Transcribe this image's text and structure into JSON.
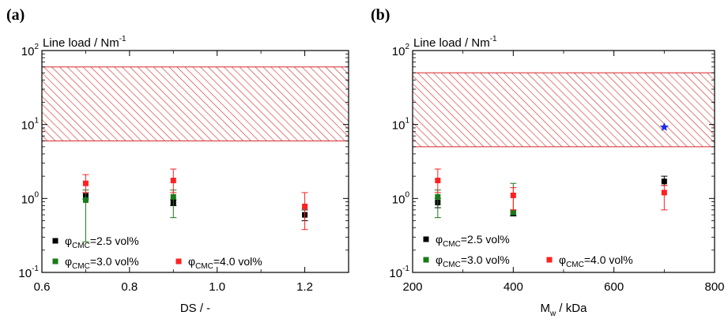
{
  "chart_data": [
    {
      "type": "scatter",
      "panel_label": "(a)",
      "ylabel": {
        "text": "Line load / Nm",
        "superscript": "-1"
      },
      "xlabel": {
        "text": "DS / -"
      },
      "xlim": [
        0.6,
        1.3
      ],
      "ylim": [
        0.1,
        100
      ],
      "yscale": "log",
      "x_ticks": [
        0.6,
        0.8,
        1.0,
        1.2
      ],
      "x_tick_labels": [
        "0.6",
        "0.8",
        "1.0",
        "1.2"
      ],
      "y_ticks": [
        0.1,
        1,
        10,
        100
      ],
      "y_tick_labels": [
        {
          "base": "10",
          "exp": "-1"
        },
        {
          "base": "10",
          "exp": "0"
        },
        {
          "base": "10",
          "exp": "1"
        },
        {
          "base": "10",
          "exp": "2"
        }
      ],
      "band": {
        "y_low": 6,
        "y_high": 60,
        "color": "#d62728",
        "pattern": "diagonal-hatch"
      },
      "series": [
        {
          "name_symbol": "φ",
          "name_sub": "CMC",
          "name_rest": "=2.5 vol%",
          "color": "#000000",
          "points": [
            {
              "x": 0.7,
              "y": 1.08,
              "lo": 0.98,
              "hi": 1.2
            },
            {
              "x": 0.9,
              "y": 0.88,
              "lo": 0.8,
              "hi": 0.96
            },
            {
              "x": 1.2,
              "y": 0.6,
              "lo": 0.5,
              "hi": 0.7
            }
          ]
        },
        {
          "name_symbol": "φ",
          "name_sub": "CMC",
          "name_rest": "=3.0 vol%",
          "color": "#1a7a1a",
          "points": [
            {
              "x": 0.7,
              "y": 0.95,
              "lo": 0.26,
              "hi": 1.3
            },
            {
              "x": 0.9,
              "y": 1.05,
              "lo": 0.55,
              "hi": 1.3
            }
          ]
        },
        {
          "name_symbol": "φ",
          "name_sub": "CMC",
          "name_rest": "=4.0 vol%",
          "color": "#ff2020",
          "points": [
            {
              "x": 0.7,
              "y": 1.6,
              "lo": 1.2,
              "hi": 2.1
            },
            {
              "x": 0.9,
              "y": 1.75,
              "lo": 1.2,
              "hi": 2.5
            },
            {
              "x": 1.2,
              "y": 0.78,
              "lo": 0.38,
              "hi": 1.2
            }
          ]
        }
      ]
    },
    {
      "type": "scatter",
      "panel_label": "(b)",
      "ylabel": {
        "text": "Line load / Nm",
        "superscript": "-1"
      },
      "xlabel": {
        "text": "M",
        "subscript": "w",
        "rest": " / kDa"
      },
      "xlim": [
        200,
        800
      ],
      "ylim": [
        0.1,
        100
      ],
      "yscale": "log",
      "x_ticks": [
        200,
        400,
        600,
        800
      ],
      "x_tick_labels": [
        "200",
        "400",
        "600",
        "800"
      ],
      "y_ticks": [
        0.1,
        1,
        10,
        100
      ],
      "y_tick_labels": [
        {
          "base": "10",
          "exp": "-1"
        },
        {
          "base": "10",
          "exp": "0"
        },
        {
          "base": "10",
          "exp": "1"
        },
        {
          "base": "10",
          "exp": "2"
        }
      ],
      "band": {
        "y_low": 5,
        "y_high": 50,
        "color": "#d62728",
        "pattern": "diagonal-hatch"
      },
      "star": {
        "x": 700,
        "y": 9.2,
        "color": "#1a2ee8"
      },
      "series": [
        {
          "name_symbol": "φ",
          "name_sub": "CMC",
          "name_rest": "=2.5 vol%",
          "color": "#000000",
          "points": [
            {
              "x": 250,
              "y": 0.88,
              "lo": 0.75,
              "hi": 1.0
            },
            {
              "x": 400,
              "y": 0.63,
              "lo": 0.58,
              "hi": 0.7
            },
            {
              "x": 700,
              "y": 1.7,
              "lo": 1.5,
              "hi": 2.0
            }
          ]
        },
        {
          "name_symbol": "φ",
          "name_sub": "CMC",
          "name_rest": "=3.0 vol%",
          "color": "#1a7a1a",
          "points": [
            {
              "x": 250,
              "y": 1.05,
              "lo": 0.55,
              "hi": 1.3
            },
            {
              "x": 400,
              "y": 0.65,
              "lo": 0.6,
              "hi": 1.6
            }
          ]
        },
        {
          "name_symbol": "φ",
          "name_sub": "CMC",
          "name_rest": "=4.0 vol%",
          "color": "#ff2020",
          "points": [
            {
              "x": 250,
              "y": 1.75,
              "lo": 1.2,
              "hi": 2.5
            },
            {
              "x": 400,
              "y": 1.1,
              "lo": 0.7,
              "hi": 1.4
            },
            {
              "x": 700,
              "y": 1.2,
              "lo": 0.7,
              "hi": 1.5
            }
          ]
        }
      ]
    }
  ]
}
